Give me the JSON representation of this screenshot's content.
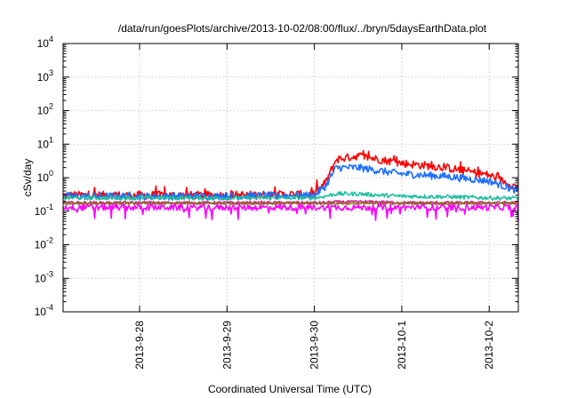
{
  "chart_data": {
    "type": "line",
    "title": "/data/run/goesPlots/archive/2013-10-02/08:00/flux/../bryn/5daysEarthData.plot",
    "xlabel": "Coordinated Universal Time (UTC)",
    "ylabel": "cSv/day",
    "x_scale": "time",
    "y_scale": "log",
    "xlim": [
      "2013-09-27T03:00",
      "2013-10-02T08:00"
    ],
    "ylim": [
      0.0001,
      10000
    ],
    "grid": true,
    "x_ticks": [
      "2013-9-28",
      "2013-9-29",
      "2013-9-30",
      "2013-10-1",
      "2013-10-2"
    ],
    "y_ticks": [
      {
        "value": 0.0001,
        "base": "10",
        "exp": "-4"
      },
      {
        "value": 0.001,
        "base": "10",
        "exp": "-3"
      },
      {
        "value": 0.01,
        "base": "10",
        "exp": "-2"
      },
      {
        "value": 0.1,
        "base": "10",
        "exp": "-1"
      },
      {
        "value": 1,
        "base": "10",
        "exp": "0"
      },
      {
        "value": 10,
        "base": "10",
        "exp": "1"
      },
      {
        "value": 100,
        "base": "10",
        "exp": "2"
      },
      {
        "value": 1000,
        "base": "10",
        "exp": "3"
      },
      {
        "value": 10000,
        "base": "10",
        "exp": "4"
      }
    ],
    "x": [
      "2013-09-27T03:00",
      "2013-09-28T00:00",
      "2013-09-29T00:00",
      "2013-09-30T00:00",
      "2013-09-30T03:00",
      "2013-09-30T06:00",
      "2013-09-30T12:00",
      "2013-09-30T18:00",
      "2013-10-01T00:00",
      "2013-10-01T12:00",
      "2013-10-02T00:00",
      "2013-10-02T08:00"
    ],
    "series": [
      {
        "color": "#ff0000",
        "values": [
          0.3,
          0.3,
          0.3,
          0.32,
          0.7,
          3.5,
          4.5,
          3.5,
          2.7,
          2.0,
          1.2,
          0.5
        ]
      },
      {
        "color": "#1e6fff",
        "values": [
          0.28,
          0.28,
          0.28,
          0.3,
          0.55,
          2.0,
          2.0,
          1.6,
          1.3,
          1.1,
          0.8,
          0.4
        ]
      },
      {
        "color": "#1fbf9f",
        "values": [
          0.25,
          0.25,
          0.25,
          0.25,
          0.28,
          0.33,
          0.33,
          0.3,
          0.28,
          0.27,
          0.25,
          0.24
        ]
      },
      {
        "color": "#d12a8c",
        "values": [
          0.18,
          0.18,
          0.18,
          0.18,
          0.18,
          0.19,
          0.19,
          0.19,
          0.18,
          0.18,
          0.18,
          0.18
        ]
      },
      {
        "color": "#8c6d1f",
        "values": [
          0.17,
          0.17,
          0.17,
          0.17,
          0.17,
          0.17,
          0.17,
          0.17,
          0.17,
          0.17,
          0.17,
          0.17
        ]
      },
      {
        "color": "#ff00ff",
        "values": [
          0.13,
          0.13,
          0.13,
          0.13,
          0.13,
          0.13,
          0.13,
          0.13,
          0.13,
          0.13,
          0.13,
          0.13
        ]
      }
    ]
  }
}
